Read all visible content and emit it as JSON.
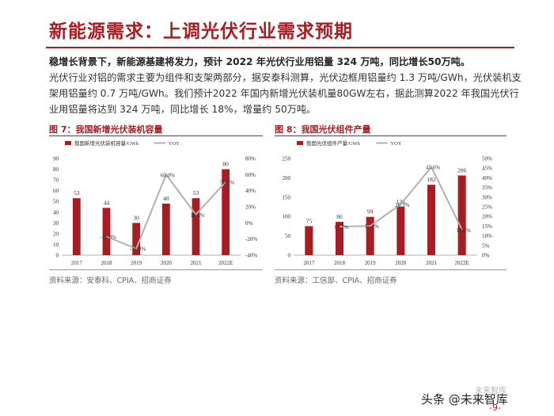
{
  "title": "新能源需求：上调光伏行业需求预期",
  "paragraph": {
    "bold": "稳增长背景下，新能源基建将发力，预计 2022 年光伏行业用铝量 324 万吨，同比增长50万吨。",
    "rest": "光伏行业对铝的需求主要为组件和支架两部分，据安泰科测算，光伏边框用铝量约 1.3 万吨/GWh，光伏装机支架用铝量约 0.7 万吨/GWh。我们预计2022 年国内新增光伏装机量80GW左右，据此测算2022 年我国光伏行业用铝量将达到 324 万吨，同比增长 18%，增量约 50万吨。"
  },
  "figures": [
    {
      "title": "图 7：我国新增光伏装机容量",
      "source": "资料来源：安泰科、CPIA、招商证券"
    },
    {
      "title": "图 8：我国光伏组件产量",
      "source": "资料来源：工信部、CPIA、招商证券"
    }
  ],
  "chart_data": [
    {
      "type": "bar",
      "categories": [
        "2017",
        "2018",
        "2019",
        "2020",
        "2021",
        "2022E"
      ],
      "series": [
        {
          "name": "我国新增光伏装机容量/GWh",
          "kind": "bar",
          "values": [
            53,
            44,
            30,
            48,
            53,
            80
          ],
          "labels": [
            "53",
            "44",
            "30",
            "48",
            "53",
            "80"
          ]
        },
        {
          "name": "YOY",
          "kind": "line",
          "values": [
            null,
            -17.0,
            -31.8,
            60.0,
            10.4,
            50.9
          ],
          "labels": [
            "",
            "-17.0%",
            "-31.8%",
            "60.0%",
            "10.4%",
            "50.9%"
          ]
        }
      ],
      "left_axis": {
        "ticks": [
          "0",
          "10",
          "20",
          "30",
          "40",
          "50",
          "60",
          "70",
          "80",
          "90"
        ],
        "min": 0,
        "max": 90
      },
      "right_axis": {
        "ticks": [
          "-40%",
          "-20%",
          "0%",
          "20%",
          "40%",
          "60%",
          "80%"
        ],
        "min": -40,
        "max": 80
      },
      "colors": {
        "bar": "#a81c22",
        "line": "#b0b0b0"
      },
      "legend": "top"
    },
    {
      "type": "bar",
      "categories": [
        "2017",
        "2018",
        "2019",
        "2020",
        "2021",
        "2022E"
      ],
      "series": [
        {
          "name": "我国光伏组件产量/GWh",
          "kind": "bar",
          "values": [
            75,
            86,
            99,
            125,
            182,
            206
          ],
          "labels": [
            "75",
            "86",
            "99",
            "125",
            "182",
            "206"
          ]
        },
        {
          "name": "YOY",
          "kind": "line",
          "values": [
            null,
            14.7,
            15.1,
            26.3,
            45.6,
            13.2
          ],
          "labels": [
            "",
            "14.7%",
            "15.1%",
            "26.3%",
            "45.6%",
            "13.2%"
          ]
        }
      ],
      "left_axis": {
        "ticks": [
          "0",
          "50",
          "100",
          "150",
          "200",
          "250"
        ],
        "min": 0,
        "max": 250
      },
      "right_axis": {
        "ticks": [
          "0%",
          "5%",
          "10%",
          "15%",
          "20%",
          "25%",
          "30%",
          "35%",
          "40%",
          "45%",
          "50%"
        ],
        "min": 0,
        "max": 50
      },
      "colors": {
        "bar": "#a81c22",
        "line": "#b0b0b0"
      },
      "legend": "top"
    }
  ],
  "watermark": {
    "text": "头条 @未来智库",
    "logo": "未来智库",
    "page": "-9-"
  }
}
